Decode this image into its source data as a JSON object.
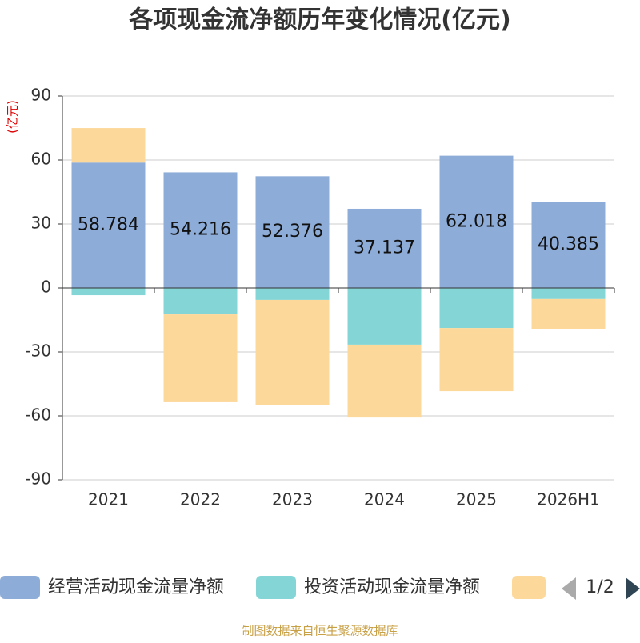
{
  "chart_data": {
    "type": "stacked_bar",
    "title": "各项现金流净额历年变化情况(亿元)",
    "y_unit": "(亿元)",
    "categories": [
      "2021",
      "2022",
      "2023",
      "2024",
      "2025",
      "2026H1"
    ],
    "series": [
      {
        "name": "经营活动现金流量净额",
        "color": "#8eacd8",
        "values": [
          58.784,
          54.216,
          52.376,
          37.137,
          62.018,
          40.385
        ],
        "show_labels": true
      },
      {
        "name": "投资活动现金流量净额",
        "color": "#84d5d6",
        "values": [
          -3.4,
          -12.4,
          -5.6,
          -26.6,
          -18.8,
          -5.2
        ]
      },
      {
        "color": "#fdd89b",
        "values": [
          16.2,
          -41.2,
          -49.2,
          -34.2,
          -29.6,
          -14.3
        ]
      }
    ],
    "ylim": [
      -90,
      90
    ],
    "yticks": [
      -90,
      -60,
      -30,
      0,
      30,
      60,
      90
    ],
    "grid": true,
    "legend_page": "1/2",
    "source": "制图数据来自恒生聚源数据库"
  }
}
